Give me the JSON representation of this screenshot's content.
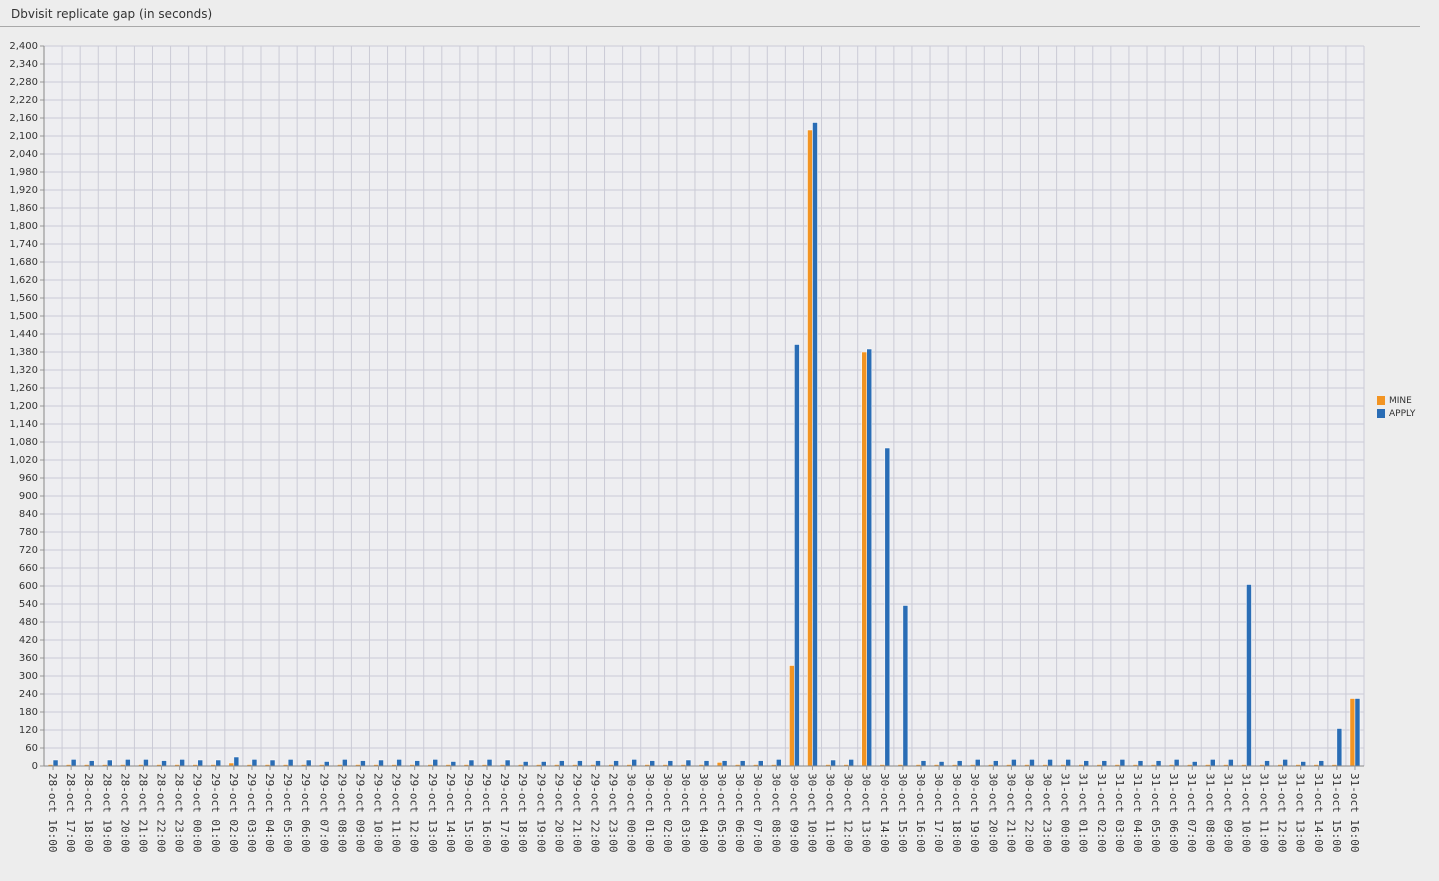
{
  "panel": {
    "title": "Dbvisit replicate gap (in seconds)"
  },
  "chart_data": {
    "type": "bar",
    "title": "Dbvisit replicate gap (in seconds)",
    "xlabel": "",
    "ylabel": "",
    "ylim": [
      0,
      2400
    ],
    "y_tick_step": 60,
    "grid": true,
    "legend_position": "right",
    "categories": [
      "28-oct 16:00",
      "28-oct 17:00",
      "28-oct 18:00",
      "28-oct 19:00",
      "28-oct 20:00",
      "28-oct 21:00",
      "28-oct 22:00",
      "28-oct 23:00",
      "29-oct 00:00",
      "29-oct 01:00",
      "29-oct 02:00",
      "29-oct 03:00",
      "29-oct 04:00",
      "29-oct 05:00",
      "29-oct 06:00",
      "29-oct 07:00",
      "29-oct 08:00",
      "29-oct 09:00",
      "29-oct 10:00",
      "29-oct 11:00",
      "29-oct 12:00",
      "29-oct 13:00",
      "29-oct 14:00",
      "29-oct 15:00",
      "29-oct 16:00",
      "29-oct 17:00",
      "29-oct 18:00",
      "29-oct 19:00",
      "29-oct 20:00",
      "29-oct 21:00",
      "29-oct 22:00",
      "29-oct 23:00",
      "30-oct 00:00",
      "30-oct 01:00",
      "30-oct 02:00",
      "30-oct 03:00",
      "30-oct 04:00",
      "30-oct 05:00",
      "30-oct 06:00",
      "30-oct 07:00",
      "30-oct 08:00",
      "30-oct 09:00",
      "30-oct 10:00",
      "30-oct 11:00",
      "30-oct 12:00",
      "30-oct 13:00",
      "30-oct 14:00",
      "30-oct 15:00",
      "30-oct 16:00",
      "30-oct 17:00",
      "30-oct 18:00",
      "30-oct 19:00",
      "30-oct 20:00",
      "30-oct 21:00",
      "30-oct 22:00",
      "30-oct 23:00",
      "31-oct 00:00",
      "31-oct 01:00",
      "31-oct 02:00",
      "31-oct 03:00",
      "31-oct 04:00",
      "31-oct 05:00",
      "31-oct 06:00",
      "31-oct 07:00",
      "31-oct 08:00",
      "31-oct 09:00",
      "31-oct 10:00",
      "31-oct 11:00",
      "31-oct 12:00",
      "31-oct 13:00",
      "31-oct 14:00",
      "31-oct 15:00",
      "31-oct 16:00"
    ],
    "series": [
      {
        "name": "MINE",
        "color": "#f29422",
        "values": [
          5,
          5,
          5,
          5,
          5,
          5,
          5,
          5,
          5,
          5,
          10,
          5,
          5,
          5,
          5,
          5,
          5,
          5,
          5,
          5,
          5,
          5,
          5,
          5,
          5,
          5,
          5,
          5,
          5,
          5,
          5,
          5,
          5,
          5,
          5,
          5,
          5,
          12,
          5,
          5,
          5,
          335,
          2120,
          5,
          5,
          1380,
          5,
          5,
          5,
          5,
          5,
          5,
          5,
          5,
          5,
          5,
          5,
          5,
          5,
          5,
          5,
          5,
          5,
          5,
          5,
          5,
          5,
          5,
          5,
          5,
          5,
          5,
          225
        ]
      },
      {
        "name": "APPLY",
        "color": "#2a6db5",
        "values": [
          20,
          22,
          18,
          20,
          22,
          22,
          18,
          22,
          20,
          20,
          30,
          22,
          20,
          22,
          20,
          15,
          22,
          18,
          20,
          22,
          18,
          22,
          15,
          20,
          22,
          20,
          15,
          15,
          18,
          18,
          18,
          18,
          22,
          18,
          18,
          20,
          18,
          18,
          18,
          18,
          22,
          1405,
          2145,
          20,
          22,
          1390,
          1060,
          535,
          18,
          15,
          18,
          22,
          18,
          22,
          22,
          22,
          22,
          18,
          18,
          22,
          18,
          18,
          22,
          15,
          22,
          22,
          605,
          18,
          22,
          15,
          18,
          125,
          225
        ]
      }
    ]
  }
}
